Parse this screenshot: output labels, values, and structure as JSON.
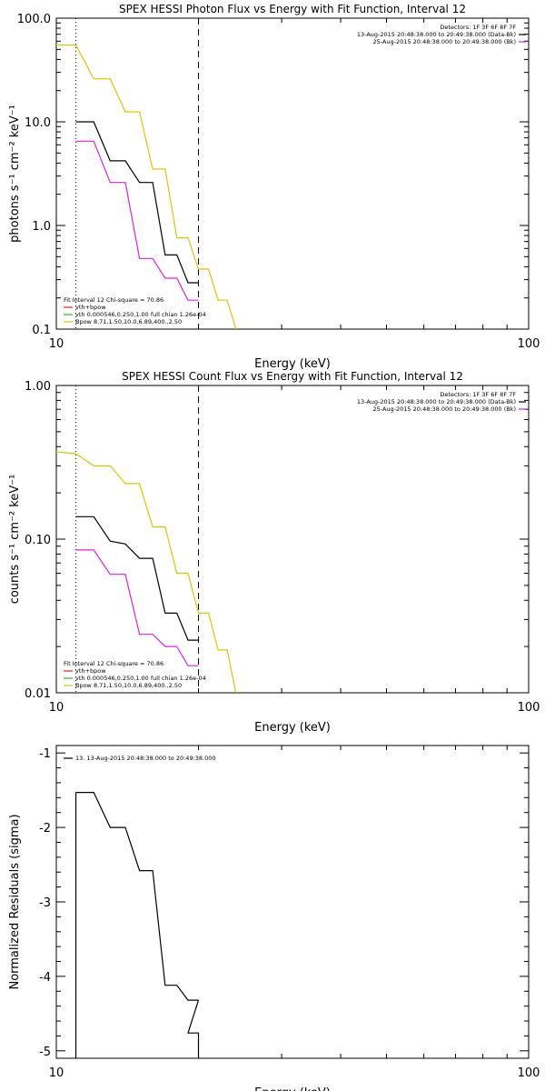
{
  "chart_data": [
    {
      "type": "line",
      "title": "SPEX HESSI Photon Flux vs Energy with Fit Function, Interval 12",
      "xlabel": "Energy (keV)",
      "ylabel": "photons s⁻¹ cm⁻² keV⁻¹",
      "xscale": "log",
      "yscale": "log",
      "xlim": [
        10,
        100
      ],
      "ylim": [
        0.1,
        100
      ],
      "x_ticks": [
        "10",
        "100"
      ],
      "y_ticks": [
        "0.1",
        "1.0",
        "10.0",
        "100.0"
      ],
      "markers": [
        {
          "x": 11,
          "style": "dotted"
        },
        {
          "x": 20,
          "style": "dashed"
        }
      ],
      "header": [
        {
          "text": "Detectors: 1F 3F 6F 8F 7F",
          "color": null
        },
        {
          "text": "13-Aug-2015 20:48:38.000 to 20:49:38.000 (Data-Bk)",
          "color": "#000000"
        },
        {
          "text": "25-Aug-2015 20:48:38.000 to 20:49:38.000 (Bk)",
          "color": "#e020e0"
        }
      ],
      "legend_title": "Fit Interval 12    Chi-square = 70.86",
      "legend_entries": [
        {
          "label": "vth+bpow",
          "color": "#e02020"
        },
        {
          "label": "vth 0.000546,0.250,1.00  full chian 1.26e-04",
          "color": "#20c020"
        },
        {
          "label": "Bpow 8.71,1.50,10.0,6.89,400.,2.50",
          "color": "#d8c800"
        }
      ],
      "series": [
        {
          "color": "#000000",
          "x": [
            11,
            12,
            13,
            14,
            15,
            16,
            17,
            18,
            19,
            20
          ],
          "values": [
            10,
            10,
            4.2,
            4.2,
            2.6,
            2.6,
            0.52,
            0.52,
            0.28,
            0.28
          ]
        },
        {
          "color": "#e020e0",
          "x": [
            11,
            12,
            13,
            14,
            15,
            16,
            17,
            18,
            19,
            20
          ],
          "values": [
            6.5,
            6.5,
            2.6,
            2.6,
            0.48,
            0.48,
            0.31,
            0.31,
            0.19,
            0.19
          ]
        },
        {
          "color": "#d8c800",
          "x": [
            10,
            11,
            12,
            13,
            14,
            15,
            16,
            17,
            18,
            19,
            20,
            21,
            22,
            23,
            24
          ],
          "values": [
            55,
            55,
            26,
            26,
            12.5,
            12.5,
            3.5,
            3.5,
            0.76,
            0.76,
            0.38,
            0.38,
            0.19,
            0.19,
            0.1
          ]
        }
      ]
    },
    {
      "type": "line",
      "title": "SPEX HESSI Count Flux vs Energy with Fit Function, Interval 12",
      "xlabel": "Energy (keV)",
      "ylabel": "counts s⁻¹ cm⁻² keV⁻¹",
      "xscale": "log",
      "yscale": "log",
      "xlim": [
        10,
        100
      ],
      "ylim": [
        0.01,
        1.0
      ],
      "x_ticks": [
        "10",
        "100"
      ],
      "y_ticks": [
        "0.01",
        "0.10",
        "1.00"
      ],
      "markers": [
        {
          "x": 11,
          "style": "dotted"
        },
        {
          "x": 20,
          "style": "dashed"
        }
      ],
      "header": [
        {
          "text": "Detectors: 1F 3F 6F 8F 7F",
          "color": null
        },
        {
          "text": "13-Aug-2015 20:48:38.000 to 20:49:38.000 (Data-Bk)",
          "color": "#000000"
        },
        {
          "text": "25-Aug-2015 20:48:38.000 to 20:49:38.000 (Bk)",
          "color": "#e020e0"
        }
      ],
      "legend_title": "Fit Interval 12    Chi-square = 70.86",
      "legend_entries": [
        {
          "label": "vth+bpow",
          "color": "#e02020"
        },
        {
          "label": "vth 0.000546,0.250,1.00  full chian 1.26e-04",
          "color": "#20c020"
        },
        {
          "label": "Bpow 8.71,1.50,10.0,6.89,400.,2.50",
          "color": "#d8c800"
        }
      ],
      "series": [
        {
          "color": "#000000",
          "x": [
            11,
            12,
            13,
            14,
            15,
            16,
            17,
            18,
            19,
            20
          ],
          "values": [
            0.14,
            0.14,
            0.097,
            0.093,
            0.075,
            0.075,
            0.033,
            0.033,
            0.022,
            0.022
          ]
        },
        {
          "color": "#e020e0",
          "x": [
            11,
            12,
            13,
            14,
            15,
            16,
            17,
            18,
            19,
            20
          ],
          "values": [
            0.085,
            0.085,
            0.059,
            0.059,
            0.024,
            0.024,
            0.02,
            0.02,
            0.015,
            0.015
          ]
        },
        {
          "color": "#d8c800",
          "x": [
            10,
            11,
            12,
            13,
            14,
            15,
            16,
            17,
            18,
            19,
            20,
            21,
            22,
            23,
            24
          ],
          "values": [
            0.37,
            0.36,
            0.3,
            0.3,
            0.23,
            0.23,
            0.12,
            0.12,
            0.06,
            0.06,
            0.033,
            0.033,
            0.019,
            0.019,
            0.01
          ]
        }
      ]
    },
    {
      "type": "line",
      "title": "",
      "xlabel": "Energy (keV)",
      "ylabel": "Normalized Residuals (sigma)",
      "xscale": "log",
      "yscale": "linear",
      "xlim": [
        10,
        100
      ],
      "ylim": [
        -5.1,
        -0.9
      ],
      "x_ticks": [
        "10",
        "100"
      ],
      "y_ticks": [
        "-5",
        "-4",
        "-3",
        "-2",
        "-1"
      ],
      "markers": [],
      "header": [],
      "legend_title": "",
      "legend_entries": [
        {
          "label": "13. 13-Aug-2015 20:48:38.000 to 20:49:38.000",
          "color": "#000000"
        }
      ],
      "series": [
        {
          "color": "#000000",
          "x": [
            11,
            12,
            13,
            14,
            15,
            16,
            17,
            18,
            19,
            20
          ],
          "values": [
            -1.53,
            -1.53,
            -2.0,
            -2.0,
            -2.58,
            -2.58,
            -4.12,
            -4.12,
            -4.32,
            -4.32
          ],
          "tail": [
            {
              "x": 19,
              "value": -4.76
            },
            {
              "x": 20,
              "value": -4.76
            }
          ]
        }
      ]
    }
  ]
}
